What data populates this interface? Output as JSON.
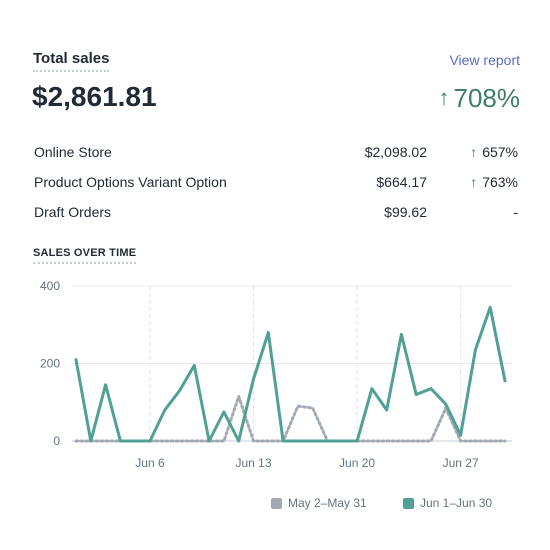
{
  "header": {
    "title": "Total sales",
    "view_report_label": "View report",
    "total_value": "$2,861.81",
    "total_change": "708%",
    "change_arrow": "↑"
  },
  "breakdown": [
    {
      "name": "Online Store",
      "amount": "$2,098.02",
      "arrow": "↑",
      "change": "657%"
    },
    {
      "name": "Product Options Variant Option",
      "amount": "$664.17",
      "arrow": "↑",
      "change": "763%"
    },
    {
      "name": "Draft Orders",
      "amount": "$99.62",
      "arrow": "",
      "change": "-"
    }
  ],
  "section_title": "SALES OVER TIME",
  "colors": {
    "current": "#50a096",
    "previous": "#a2a9b0",
    "accent_link": "#5c6ac4",
    "positive": "#3f7f67"
  },
  "chart_data": {
    "type": "line",
    "y_ticks": [
      "400",
      "200",
      "0"
    ],
    "ylim": [
      0,
      400
    ],
    "x_tick_labels": [
      {
        "day": 6,
        "label": "Jun 6"
      },
      {
        "day": 13,
        "label": "Jun 13"
      },
      {
        "day": 20,
        "label": "Jun 20"
      },
      {
        "day": 27,
        "label": "Jun 27"
      }
    ],
    "days": [
      1,
      2,
      3,
      4,
      5,
      6,
      7,
      8,
      9,
      10,
      11,
      12,
      13,
      14,
      15,
      16,
      17,
      18,
      19,
      20,
      21,
      22,
      23,
      24,
      25,
      26,
      27,
      28,
      29,
      30
    ],
    "series": [
      {
        "name": "May 2–May 31",
        "style": "dotted",
        "values": [
          0,
          0,
          0,
          0,
          0,
          0,
          0,
          0,
          0,
          0,
          0,
          115,
          0,
          0,
          0,
          90,
          85,
          0,
          0,
          0,
          0,
          0,
          0,
          0,
          0,
          85,
          0,
          0,
          0,
          0
        ]
      },
      {
        "name": "Jun 1–Jun 30",
        "style": "solid",
        "values": [
          210,
          0,
          145,
          0,
          0,
          0,
          80,
          130,
          195,
          0,
          75,
          0,
          160,
          280,
          0,
          0,
          0,
          0,
          0,
          0,
          135,
          80,
          275,
          120,
          135,
          95,
          15,
          235,
          345,
          155
        ]
      }
    ]
  }
}
